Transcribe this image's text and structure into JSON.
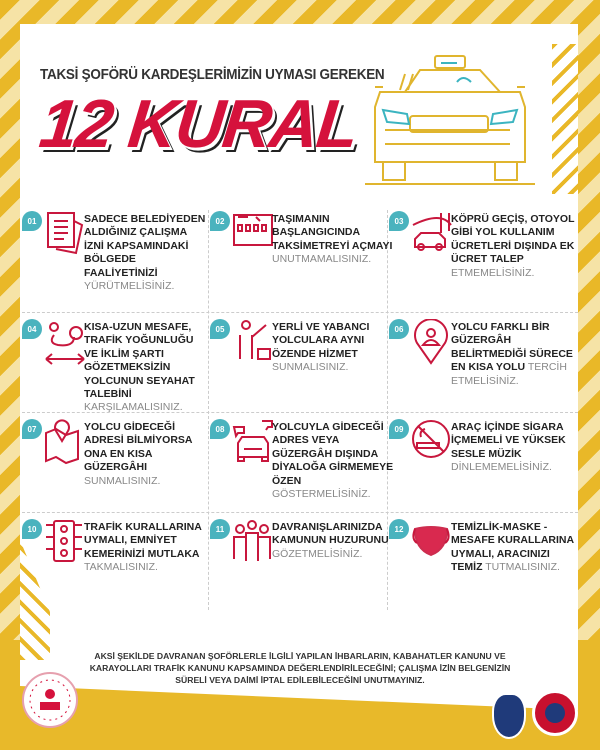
{
  "header": {
    "subtitle": "TAKSİ ŞOFÖRÜ KARDEŞLERİMİZİN UYMASI GEREKEN",
    "title": "12 KURAL"
  },
  "colors": {
    "accent": "#d5123c",
    "badge": "#4ab3be",
    "yellow": "#e8b92a"
  },
  "rules": [
    {
      "num": "01",
      "bold": "SADECE BELEDİYEDEN ALDIĞINIZ ÇALIŞMA İZNİ KAPSAMINDAKİ BÖLGEDE FAALİYETİNİZİ",
      "light": "YÜRÜTMELİSİNİZ.",
      "icon": "document-icon"
    },
    {
      "num": "02",
      "bold": "TAŞIMANIN BAŞLANGICINDA TAKSİMETREYİ AÇMAYI",
      "light": "UNUTMAMALISINIZ.",
      "icon": "taximeter-icon"
    },
    {
      "num": "03",
      "bold": "KÖPRÜ GEÇİŞ, OTOYOL GİBİ YOL KULLANIM ÜCRETLERİ DIŞINDA EK ÜCRET TALEP",
      "light": "ETMEMELİSİNİZ.",
      "icon": "bridge-car-icon"
    },
    {
      "num": "04",
      "bold": "KISA-UZUN MESAFE, TRAFİK YOĞUNLUĞU VE İKLİM ŞARTI GÖZETMEKSİZİN YOLCUNUN SEYAHAT TALEBİNİ",
      "light": "KARŞILAMALISINIZ.",
      "icon": "route-icon"
    },
    {
      "num": "05",
      "bold": "YERLİ VE YABANCI YOLCULARA AYNI ÖZENDE HİZMET",
      "light": "SUNMALISINIZ.",
      "icon": "passenger-icon"
    },
    {
      "num": "06",
      "bold": "YOLCU FARKLI BİR GÜZERGÂH BELİRTMEDİĞİ SÜRECE EN KISA YOLU",
      "light": "TERCİH ETMELİSİNİZ.",
      "icon": "location-person-icon"
    },
    {
      "num": "07",
      "bold": "YOLCU GİDECEĞİ ADRESİ BİLMİYORSA ONA EN KISA GÜZERGÂHI",
      "light": "SUNMALISINIZ.",
      "icon": "map-icon"
    },
    {
      "num": "08",
      "bold": "YOLCUYLA GİDECEĞİ ADRES VEYA GÜZERGÂH DIŞINDA DİYALOĞA GİRMEMEYE ÖZEN",
      "light": "GÖSTERMELİSİNİZ.",
      "icon": "taxi-chat-icon"
    },
    {
      "num": "09",
      "bold": "ARAÇ İÇİNDE SİGARA İÇMEMELİ VE YÜKSEK SESLE MÜZİK",
      "light": "DİNLEMEMELİSİNİZ.",
      "icon": "no-smoking-icon"
    },
    {
      "num": "10",
      "bold": "TRAFİK KURALLARINA UYMALI, EMNİYET KEMERİNİZİ MUTLAKA",
      "light": "TAKMALISINIZ.",
      "icon": "traffic-light-icon"
    },
    {
      "num": "11",
      "bold": "DAVRANIŞLARINIZDA KAMUNUN HUZURUNU",
      "light": "GÖZETMELİSİNİZ.",
      "icon": "people-icon"
    },
    {
      "num": "12",
      "bold": "TEMİZLİK-MASKE -MESAFE KURALLARINA UYMALI, ARACINIZI TEMİZ",
      "light": "TUTMALISINIZ.",
      "icon": "mask-icon"
    }
  ],
  "footer": {
    "note": "AKSİ ŞEKİLDE DAVRANAN ŞOFÖRLERLE İLGİLİ YAPILAN İHBARLARIN, KABAHATLER KANUNU VE KARAYOLLARI TRAFİK KANUNU KAPSAMINDA DEĞERLENDİRİLECEĞİNİ; ÇALIŞMA İZİN BELGENİZİN SÜRELİ VEYA DAİMİ İPTAL EDİLEBİLECEĞİNİ UNUTMAYINIZ.",
    "logos": [
      "İçişleri Bakanlığı",
      "POLİS",
      "JANDARMA"
    ]
  }
}
